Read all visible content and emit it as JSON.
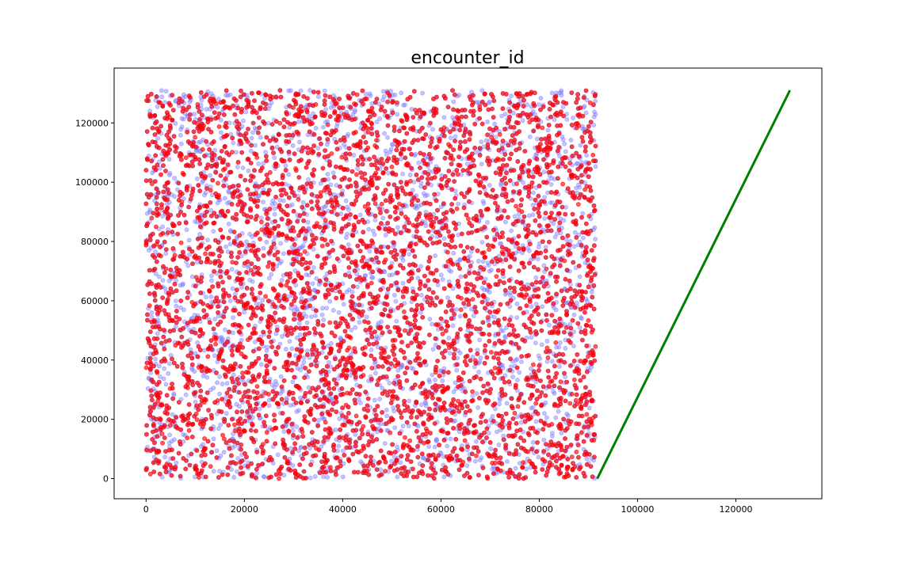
{
  "chart_data": {
    "type": "scatter",
    "title": "encounter_id",
    "xlabel": "",
    "ylabel": "",
    "xlim": [
      -6500,
      137500
    ],
    "ylim": [
      -6800,
      138500
    ],
    "xticks": [
      0,
      20000,
      40000,
      60000,
      80000,
      100000,
      120000
    ],
    "yticks": [
      0,
      20000,
      40000,
      60000,
      80000,
      100000,
      120000
    ],
    "xtick_labels": [
      "0",
      "20000",
      "40000",
      "60000",
      "80000",
      "100000",
      "120000"
    ],
    "ytick_labels": [
      "0",
      "20000",
      "40000",
      "60000",
      "80000",
      "100000",
      "120000"
    ],
    "grid": false,
    "legend": "none",
    "series": [
      {
        "kind": "random-scatter",
        "color": "#7b7bff",
        "opacity": 0.45,
        "x_range": [
          0,
          91500
        ],
        "y_range": [
          0,
          131000
        ],
        "approx_points": 6000
      },
      {
        "kind": "random-scatter",
        "color": "#ff0000",
        "opacity": 0.65,
        "x_range": [
          0,
          91500
        ],
        "y_range": [
          0,
          131000
        ],
        "approx_points": 4200
      },
      {
        "kind": "line",
        "color": "#008000",
        "x": [
          91800,
          131000
        ],
        "y": [
          0,
          131000
        ]
      }
    ]
  }
}
